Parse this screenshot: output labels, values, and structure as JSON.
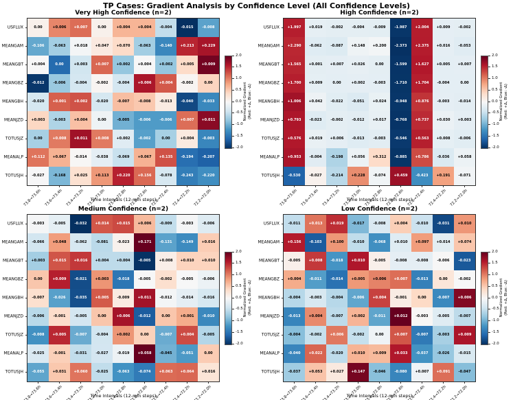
{
  "title": "TP Cases: Gradient Analysis by Confidence Level (All Confidence Levels)",
  "xlabel": "Time Intervals (12-min steps)",
  "colorbar": {
    "label": "Normalized Gradient",
    "sublabel": "(Red: +Δ, Blue: -Δ)",
    "ticks": [
      "2.0",
      "1.5",
      "1.0",
      "0.5",
      "0.0",
      "-0.5",
      "-1.0",
      "-1.5",
      "-2.0"
    ],
    "vmin": -2.0,
    "vmax": 2.0,
    "cmap_anchors_top_to_bottom": [
      "#67001f",
      "#b2182b",
      "#d6604d",
      "#f4a582",
      "#fddbc7",
      "#f7f7f7",
      "#d1e5f0",
      "#92c5de",
      "#4393c3",
      "#2166ac",
      "#053061"
    ]
  },
  "chart_data": [
    {
      "type": "heatmap",
      "title": "Very High Confidence (n=2)",
      "x": [
        "73.8→73.6h",
        "73.6→73.4h",
        "73.4→73.2h",
        "73.2→73.0h",
        "73.0→72.8h",
        "72.8→72.6h",
        "72.6→72.4h",
        "72.4→72.2h",
        "72.2→72.0h"
      ],
      "y": [
        "USFLUX",
        "MEANGAM",
        "MEANGBT",
        "MEANGBZ",
        "MEANGBH",
        "MEANJZD",
        "TOTUSJZ",
        "MEANALP",
        "TOTUSJH"
      ],
      "values": [
        [
          0.0,
          0.006,
          0.007,
          0.0,
          0.004,
          0.004,
          -0.004,
          -0.015,
          -0.008
        ],
        [
          -0.106,
          -0.063,
          0.018,
          0.047,
          0.07,
          -0.063,
          -0.14,
          0.213,
          0.229
        ],
        [
          0.004,
          0.0,
          0.003,
          0.007,
          0.002,
          0.004,
          0.002,
          0.005,
          0.009
        ],
        [
          -0.012,
          -0.006,
          -0.004,
          -0.002,
          -0.004,
          0.006,
          0.004,
          -0.002,
          0.0
        ],
        [
          -0.02,
          0.001,
          0.002,
          -0.02,
          -0.007,
          -0.008,
          -0.013,
          -0.04,
          -0.033
        ],
        [
          0.003,
          -0.003,
          0.004,
          0.0,
          -0.005,
          -0.006,
          -0.006,
          0.007,
          0.011
        ],
        [
          0.0,
          0.008,
          0.011,
          0.008,
          0.002,
          -0.002,
          0.0,
          0.004,
          -0.003
        ],
        [
          0.112,
          0.067,
          -0.014,
          -0.038,
          -0.069,
          0.067,
          0.135,
          -0.194,
          -0.207
        ],
        [
          -0.027,
          -0.168,
          0.025,
          0.113,
          0.22,
          0.156,
          -0.078,
          -0.243,
          -0.22
        ]
      ]
    },
    {
      "type": "heatmap",
      "title": "High Confidence (n=2)",
      "x": [
        "73.8→73.6h",
        "73.6→73.4h",
        "73.4→73.2h",
        "73.2→73.0h",
        "73.0→72.8h",
        "72.8→72.6h",
        "72.6→72.4h",
        "72.4→72.2h",
        "72.2→72.0h"
      ],
      "y": [
        "USFLUX",
        "MEANGAM",
        "MEANGBT",
        "MEANGBZ",
        "MEANGBH",
        "MEANJZD",
        "TOTUSJZ",
        "MEANALP",
        "TOTUSJH"
      ],
      "values": [
        [
          1.997,
          0.019,
          -0.002,
          -0.004,
          -0.009,
          -1.987,
          2.004,
          0.009,
          -0.002
        ],
        [
          2.29,
          -0.062,
          -0.087,
          0.148,
          0.2,
          -2.373,
          2.375,
          0.016,
          -0.053
        ],
        [
          1.565,
          0.001,
          0.007,
          0.026,
          0.0,
          -1.599,
          1.627,
          0.005,
          0.007
        ],
        [
          1.7,
          0.009,
          0.0,
          0.002,
          -0.003,
          -1.71,
          1.704,
          -0.004,
          0.0
        ],
        [
          1.006,
          0.042,
          -0.022,
          -0.051,
          0.024,
          -0.948,
          0.876,
          -0.003,
          -0.014
        ],
        [
          0.793,
          -0.023,
          -0.002,
          -0.012,
          0.017,
          -0.768,
          0.737,
          0.03,
          0.003
        ],
        [
          0.576,
          0.019,
          0.006,
          -0.013,
          -0.003,
          -0.546,
          0.563,
          0.008,
          -0.006
        ],
        [
          0.953,
          -0.004,
          -0.198,
          0.056,
          0.312,
          -0.885,
          0.786,
          -0.036,
          0.058
        ],
        [
          -0.53,
          -0.027,
          -0.214,
          0.228,
          -0.074,
          0.459,
          -0.423,
          0.191,
          -0.071
        ]
      ]
    },
    {
      "type": "heatmap",
      "title": "Medium Confidence (n=2)",
      "x": [
        "73.8→73.6h",
        "73.6→73.4h",
        "73.4→73.2h",
        "73.2→73.0h",
        "73.0→72.8h",
        "72.8→72.6h",
        "72.6→72.4h",
        "72.4→72.2h",
        "72.2→72.0h"
      ],
      "y": [
        "USFLUX",
        "MEANGAM",
        "MEANGBT",
        "MEANGBZ",
        "MEANGBH",
        "MEANJZD",
        "TOTUSJZ",
        "MEANALP",
        "TOTUSJH"
      ],
      "values": [
        [
          -0.003,
          -0.005,
          -0.032,
          0.014,
          0.015,
          0.006,
          -0.009,
          -0.003,
          -0.006
        ],
        [
          -0.066,
          0.048,
          -0.062,
          -0.081,
          -0.023,
          0.171,
          -0.131,
          -0.149,
          0.016
        ],
        [
          0.003,
          0.015,
          0.016,
          0.004,
          0.004,
          -0.005,
          0.008,
          0.01,
          0.01
        ],
        [
          0.0,
          0.009,
          -0.021,
          0.003,
          -0.018,
          -0.005,
          -0.002,
          -0.005,
          -0.006
        ],
        [
          -0.007,
          -0.026,
          -0.035,
          0.005,
          -0.009,
          0.011,
          -0.012,
          -0.014,
          -0.016
        ],
        [
          -0.006,
          -0.001,
          -0.005,
          0.0,
          0.006,
          -0.012,
          0.0,
          0.001,
          -0.01
        ],
        [
          -0.008,
          0.005,
          -0.007,
          -0.004,
          0.002,
          0.0,
          -0.007,
          0.004,
          -0.005
        ],
        [
          -0.025,
          -0.001,
          -0.031,
          -0.027,
          -0.019,
          0.058,
          -0.045,
          -0.051,
          0.0
        ],
        [
          -0.055,
          0.031,
          0.06,
          -0.025,
          -0.063,
          -0.074,
          0.063,
          0.064,
          0.016
        ]
      ]
    },
    {
      "type": "heatmap",
      "title": "Low Confidence (n=2)",
      "x": [
        "73.8→73.6h",
        "73.6→73.4h",
        "73.4→73.2h",
        "73.2→73.0h",
        "73.0→72.8h",
        "72.8→72.6h",
        "72.6→72.4h",
        "72.4→72.2h",
        "72.2→72.0h"
      ],
      "y": [
        "USFLUX",
        "MEANGAM",
        "MEANGBT",
        "MEANGBZ",
        "MEANGBH",
        "MEANJZD",
        "TOTUSJZ",
        "MEANALP",
        "TOTUSJH"
      ],
      "values": [
        [
          -0.011,
          0.013,
          0.019,
          -0.017,
          -0.008,
          0.004,
          -0.01,
          -0.031,
          0.01
        ],
        [
          0.156,
          -0.103,
          0.1,
          -0.01,
          -0.068,
          0.01,
          0.097,
          0.014,
          0.074
        ],
        [
          -0.005,
          0.008,
          -0.018,
          0.01,
          -0.005,
          -0.008,
          -0.008,
          -0.006,
          -0.023
        ],
        [
          0.004,
          -0.011,
          -0.014,
          0.005,
          0.006,
          0.007,
          -0.013,
          0.0,
          -0.002
        ],
        [
          -0.004,
          -0.003,
          -0.004,
          -0.006,
          0.004,
          -0.001,
          0.0,
          -0.007,
          0.006
        ],
        [
          -0.013,
          0.004,
          -0.007,
          0.002,
          -0.011,
          0.012,
          -0.003,
          -0.005,
          -0.007
        ],
        [
          -0.004,
          -0.002,
          0.006,
          -0.002,
          0.0,
          0.007,
          -0.007,
          -0.003,
          0.009
        ],
        [
          -0.04,
          0.022,
          -0.02,
          0.01,
          0.009,
          0.033,
          -0.037,
          -0.026,
          -0.015
        ],
        [
          -0.037,
          0.053,
          0.027,
          0.147,
          -0.046,
          -0.08,
          0.007,
          0.091,
          -0.047
        ]
      ]
    }
  ]
}
